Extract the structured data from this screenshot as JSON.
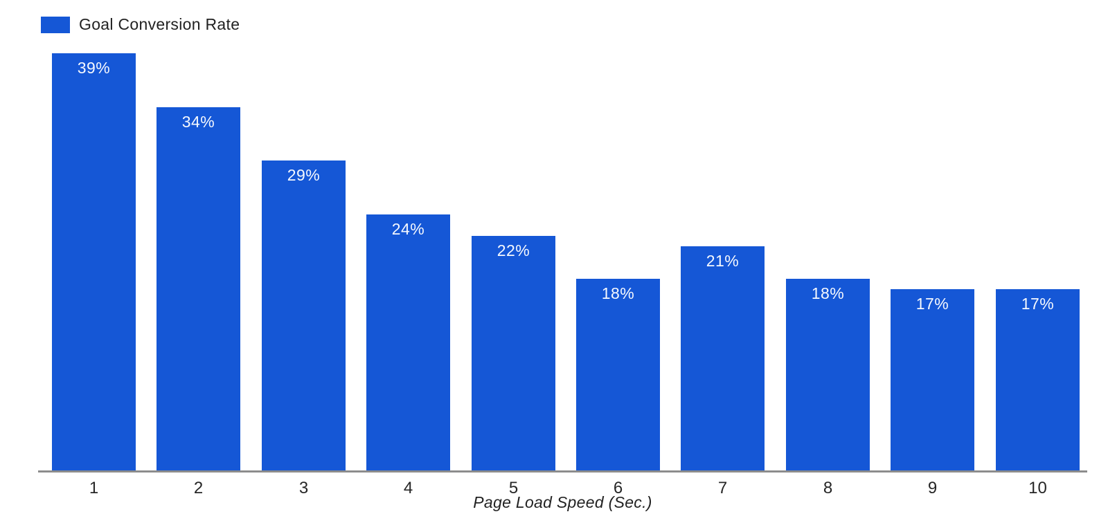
{
  "legend": {
    "label": "Goal Conversion Rate"
  },
  "chart_data": {
    "type": "bar",
    "title": "",
    "categories": [
      "1",
      "2",
      "3",
      "4",
      "5",
      "6",
      "7",
      "8",
      "9",
      "10"
    ],
    "values": [
      39,
      34,
      29,
      24,
      22,
      18,
      21,
      18,
      17,
      17
    ],
    "labels": [
      "39%",
      "34%",
      "29%",
      "24%",
      "22%",
      "18%",
      "21%",
      "18%",
      "17%",
      "17%"
    ],
    "series_name": "Goal Conversion Rate",
    "xlabel": "Page Load Speed (Sec.)",
    "ylabel": "",
    "ylim": [
      0,
      40
    ],
    "grid": false,
    "legend_position": "top-left",
    "colors": {
      "bar": "#1557D6",
      "value_label": "#FFFFFF",
      "axis_line": "#8C8C8C",
      "text": "#262626"
    }
  }
}
